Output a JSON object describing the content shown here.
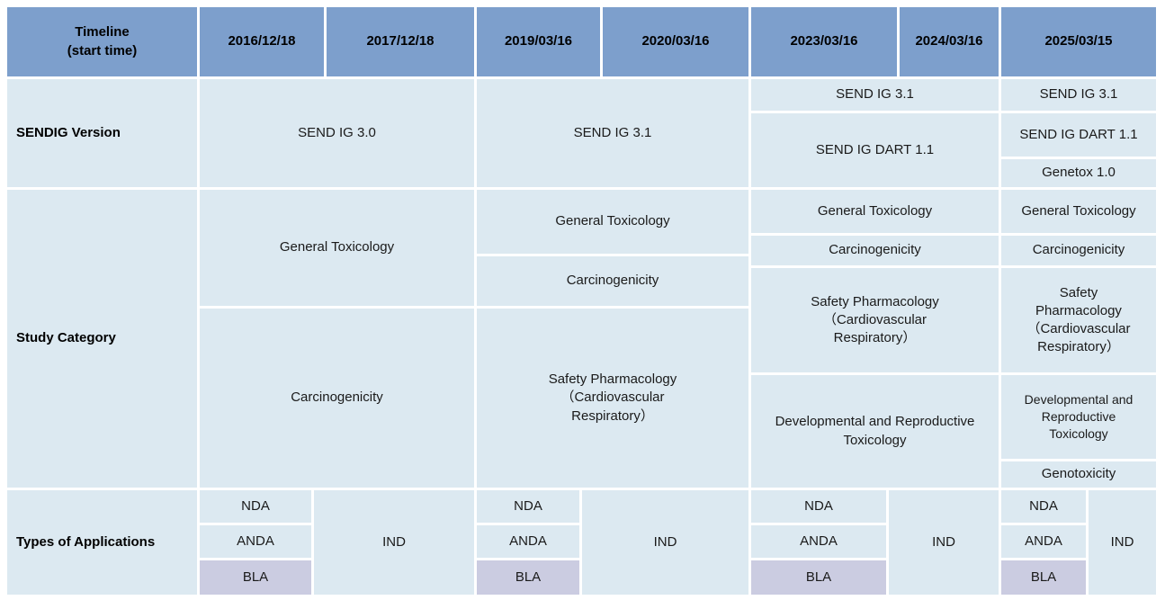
{
  "colors": {
    "header_bg": "#7d9fcc",
    "cell_bg": "#dce9f1",
    "bla_bg": "#cbcce1",
    "gridline": "#ffffff",
    "text": "#1a1a1a"
  },
  "header": {
    "timeline": "Timeline\n(start time)",
    "dates": [
      "2016/12/18",
      "2017/12/18",
      "2019/03/16",
      "2020/03/16",
      "2023/03/16",
      "2024/03/16",
      "2025/03/15"
    ]
  },
  "sendig": {
    "label": "SENDIG Version",
    "cells": {
      "v30_2016_2017": "SEND IG 3.0",
      "v31_2019_2020": "SEND IG 3.1",
      "v31_2023_2024": "SEND IG 3.1",
      "dart_2023_2024": "SEND IG DART 1.1",
      "v31_2025": "SEND IG 3.1",
      "dart_2025": "SEND IG DART 1.1",
      "genetox_2025": "Genetox 1.0"
    }
  },
  "study": {
    "label": "Study Category",
    "cells": {
      "gentox_2016_2017": "General Toxicology",
      "carc_2016_2017": "Carcinogenicity",
      "gentox_2019_2020": "General Toxicology",
      "carc_2019_2020": "Carcinogenicity",
      "safpharm_2019_2020": "Safety Pharmacology\n（Cardiovascular\nRespiratory）",
      "gentox_2023_2024": "General Toxicology",
      "carc_2023_2024": "Carcinogenicity",
      "safpharm_2023_2024": "Safety Pharmacology\n（Cardiovascular\nRespiratory）",
      "dart_2023_2024": "Developmental and Reproductive\nToxicology",
      "gentox_2025": "General Toxicology",
      "carc_2025": "Carcinogenicity",
      "safpharm_2025": "Safety\nPharmacology\n（Cardiovascular\nRespiratory）",
      "dart_2025": "Developmental and\nReproductive\nToxicology",
      "genotox_2025": "Genotoxicity"
    }
  },
  "types": {
    "label": "Types of Applications",
    "cells": {
      "nda_2016": "NDA",
      "anda_2016": "ANDA",
      "bla_2016": "BLA",
      "ind_2017": "IND",
      "nda_2019": "NDA",
      "anda_2019": "ANDA",
      "bla_2019": "BLA",
      "ind_2020": "IND",
      "nda_2023": "NDA",
      "anda_2023": "ANDA",
      "bla_2023": "BLA",
      "ind_2024": "IND",
      "nda_2025": "NDA",
      "anda_2025": "ANDA",
      "bla_2025": "BLA",
      "ind_2025": "IND"
    }
  }
}
